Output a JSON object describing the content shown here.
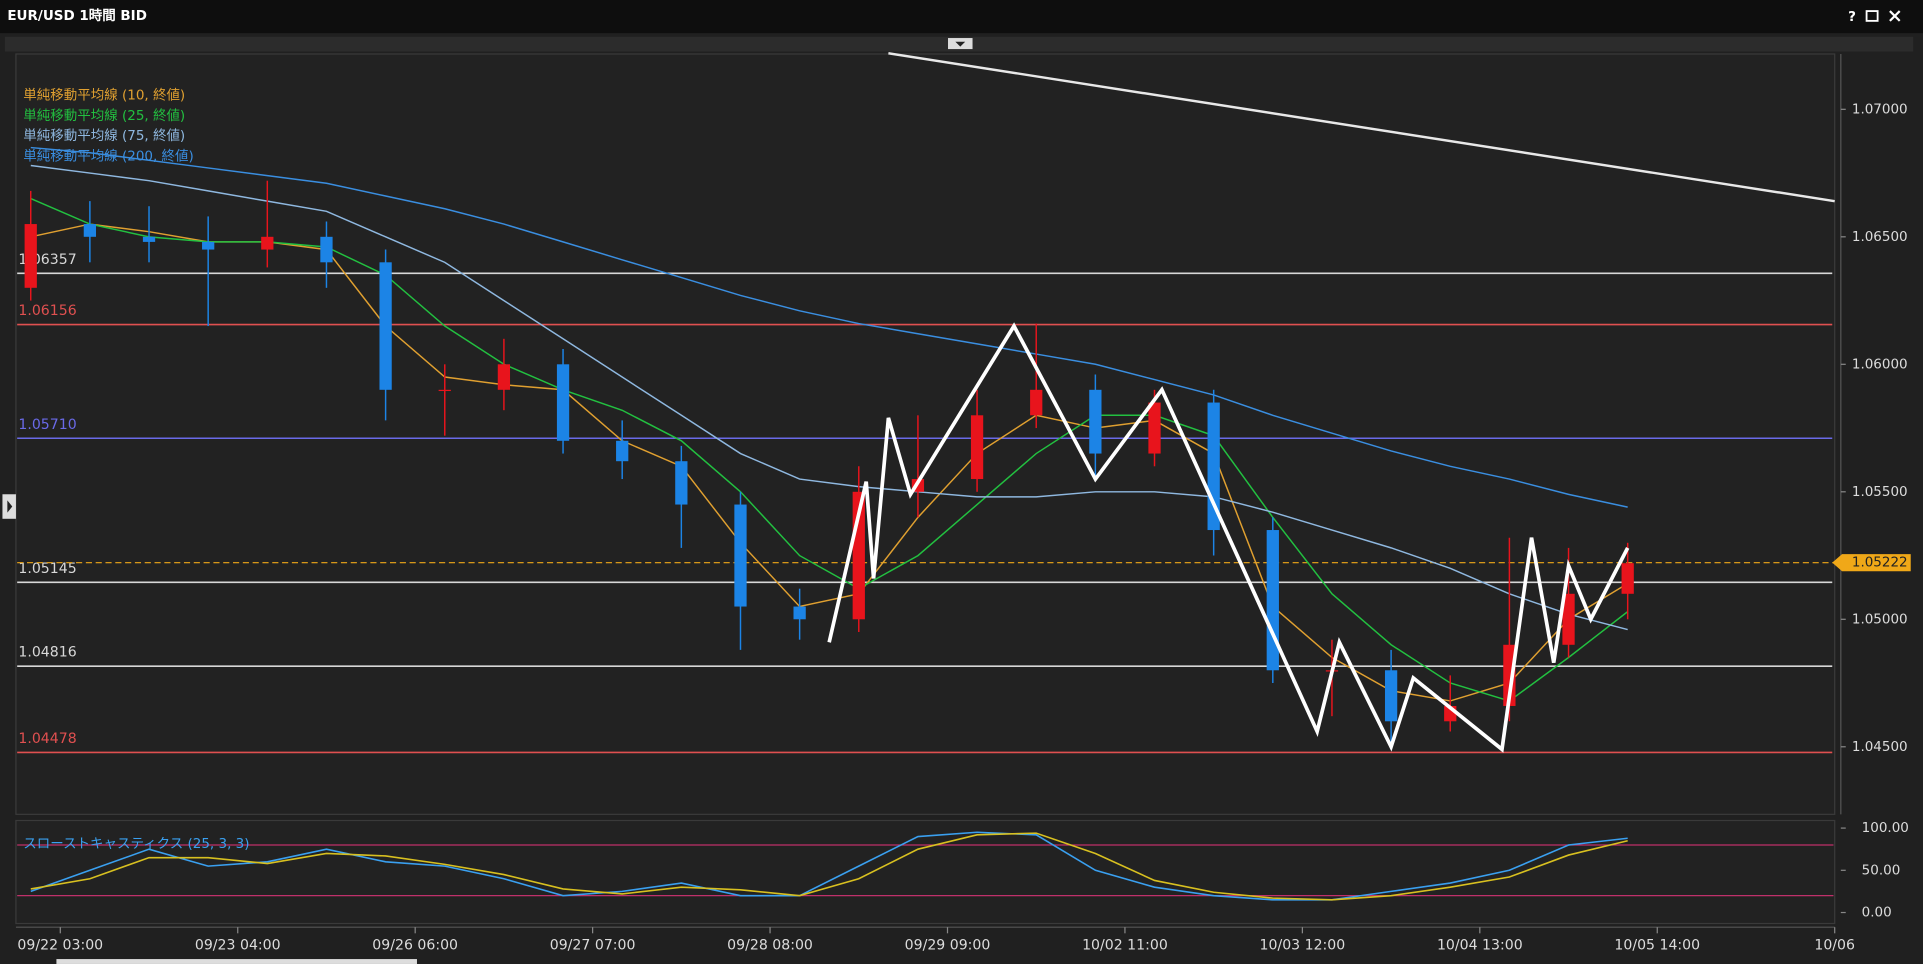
{
  "header": {
    "title": "EUR/USD 1時間 BID",
    "help": "?"
  },
  "chart_data": {
    "type": "candlestick",
    "xlim": [
      -6,
      240
    ],
    "xticks": [
      {
        "value": 0,
        "label": "09/22 03:00"
      },
      {
        "value": 24,
        "label": "09/23 04:00"
      },
      {
        "value": 48,
        "label": "09/26 06:00"
      },
      {
        "value": 72,
        "label": "09/27 07:00"
      },
      {
        "value": 96,
        "label": "09/28 08:00"
      },
      {
        "value": 120,
        "label": "09/29 09:00"
      },
      {
        "value": 144,
        "label": "10/02 11:00"
      },
      {
        "value": 168,
        "label": "10/03 12:00"
      },
      {
        "value": 192,
        "label": "10/04 13:00"
      },
      {
        "value": 216,
        "label": "10/05 14:00"
      },
      {
        "value": 240,
        "label": "10/06"
      }
    ],
    "ylim": [
      1.04235,
      1.07217
    ],
    "yticks": [
      {
        "value": 1.07,
        "label": "1.07000"
      },
      {
        "value": 1.065,
        "label": "1.06500"
      },
      {
        "value": 1.06,
        "label": "1.06000"
      },
      {
        "value": 1.055,
        "label": "1.05500"
      },
      {
        "value": 1.05,
        "label": "1.05000"
      },
      {
        "value": 1.045,
        "label": "1.04500"
      }
    ],
    "candles": {
      "up_color": "#e8141c",
      "down_color": "#1c84e6",
      "x": [
        -4,
        4,
        12,
        20,
        28,
        36,
        44,
        52,
        60,
        68,
        76,
        84,
        92,
        100,
        108,
        116,
        124,
        132,
        140,
        148,
        156,
        164,
        172,
        180,
        188,
        196,
        204,
        212
      ],
      "open": [
        1.063,
        1.0655,
        1.065,
        1.0648,
        1.0645,
        1.065,
        1.064,
        1.059,
        1.059,
        1.06,
        1.057,
        1.0562,
        1.0545,
        1.0505,
        1.05,
        1.055,
        1.0555,
        1.058,
        1.059,
        1.0565,
        1.0585,
        1.0535,
        1.048,
        1.048,
        1.046,
        1.0466,
        1.049,
        1.051
      ],
      "high": [
        1.0668,
        1.0664,
        1.0662,
        1.0658,
        1.0672,
        1.0656,
        1.0645,
        1.06,
        1.061,
        1.0606,
        1.0578,
        1.0568,
        1.055,
        1.0512,
        1.056,
        1.058,
        1.059,
        1.0616,
        1.0596,
        1.059,
        1.059,
        1.054,
        1.0492,
        1.0488,
        1.0478,
        1.0532,
        1.0528,
        1.053
      ],
      "low": [
        1.0625,
        1.064,
        1.064,
        1.0615,
        1.0638,
        1.063,
        1.0578,
        1.0572,
        1.0582,
        1.0565,
        1.0555,
        1.0528,
        1.0488,
        1.0492,
        1.0495,
        1.054,
        1.055,
        1.0575,
        1.0556,
        1.056,
        1.0525,
        1.0475,
        1.0462,
        1.0449,
        1.0456,
        1.046,
        1.0485,
        1.05
      ],
      "close": [
        1.0655,
        1.065,
        1.0648,
        1.0645,
        1.065,
        1.064,
        1.059,
        1.059,
        1.06,
        1.057,
        1.0562,
        1.0545,
        1.0505,
        1.05,
        1.055,
        1.0555,
        1.058,
        1.059,
        1.0565,
        1.0585,
        1.0535,
        1.048,
        1.048,
        1.046,
        1.0466,
        1.049,
        1.051,
        1.0522
      ]
    },
    "series_x": [
      -4,
      4,
      12,
      20,
      28,
      36,
      44,
      52,
      60,
      68,
      76,
      84,
      92,
      100,
      108,
      116,
      124,
      132,
      140,
      148,
      156,
      164,
      172,
      180,
      188,
      196,
      204,
      212
    ],
    "series": [
      {
        "name": "単純移動平均線 (10, 終値)",
        "color": "#e0a030",
        "values": [
          1.065,
          1.0655,
          1.0652,
          1.0648,
          1.0648,
          1.0645,
          1.0615,
          1.0595,
          1.0592,
          1.059,
          1.057,
          1.056,
          1.053,
          1.0505,
          1.051,
          1.054,
          1.0565,
          1.058,
          1.0575,
          1.0578,
          1.0565,
          1.0505,
          1.0485,
          1.0472,
          1.0468,
          1.0475,
          1.05,
          1.0514
        ]
      },
      {
        "name": "単純移動平均線 (25, 終値)",
        "color": "#22c040",
        "values": [
          1.0665,
          1.0655,
          1.065,
          1.0648,
          1.0648,
          1.0646,
          1.0635,
          1.0615,
          1.06,
          1.059,
          1.0582,
          1.057,
          1.055,
          1.0525,
          1.0512,
          1.0525,
          1.0545,
          1.0565,
          1.058,
          1.058,
          1.0572,
          1.054,
          1.051,
          1.049,
          1.0475,
          1.0468,
          1.0485,
          1.0503
        ]
      },
      {
        "name": "単純移動平均線 (75, 終値)",
        "color": "#8fb8e0",
        "values": [
          1.0678,
          1.0675,
          1.0672,
          1.0668,
          1.0664,
          1.066,
          1.065,
          1.064,
          1.0625,
          1.061,
          1.0595,
          1.058,
          1.0565,
          1.0555,
          1.0552,
          1.055,
          1.0548,
          1.0548,
          1.055,
          1.055,
          1.0548,
          1.0542,
          1.0535,
          1.0528,
          1.052,
          1.051,
          1.0502,
          1.0496
        ]
      },
      {
        "name": "単純移動平均線 (200, 終値)",
        "color": "#3a8ee0",
        "values": [
          1.0685,
          1.0683,
          1.068,
          1.0677,
          1.0674,
          1.0671,
          1.0666,
          1.0661,
          1.0655,
          1.0648,
          1.0641,
          1.0634,
          1.0627,
          1.0621,
          1.0616,
          1.0612,
          1.0608,
          1.0604,
          1.06,
          1.0594,
          1.0588,
          1.058,
          1.0573,
          1.0566,
          1.056,
          1.0555,
          1.0549,
          1.0544
        ]
      }
    ],
    "levels": [
      {
        "value": 1.06357,
        "color": "#d8d8d8"
      },
      {
        "value": 1.06156,
        "color": "#e05050"
      },
      {
        "value": 1.0571,
        "label": "1.05710",
        "color": "#6a6ae8"
      },
      {
        "value": 1.05145,
        "color": "#d8d8d8"
      },
      {
        "value": 1.04816,
        "color": "#d8d8d8"
      },
      {
        "value": 1.04478,
        "color": "#e05050"
      }
    ],
    "current_price": 1.05222,
    "current_color": "#f0a818",
    "zigzag": {
      "color": "#ffffff",
      "x": [
        104,
        109,
        110,
        112,
        115,
        129,
        140,
        149,
        170,
        173,
        180,
        183,
        195,
        199,
        202,
        204,
        207,
        212
      ],
      "values": [
        1.0491,
        1.0554,
        1.0516,
        1.0579,
        1.0549,
        1.0615,
        1.0555,
        1.059,
        1.0456,
        1.0491,
        1.045,
        1.0477,
        1.0449,
        1.0532,
        1.0483,
        1.0521,
        1.05,
        1.0528
      ]
    },
    "trendline": {
      "color": "#e8e8e8",
      "x": [
        112,
        240
      ],
      "values": [
        1.0722,
        1.0664
      ]
    },
    "stochastic": {
      "label": "スローストキャスティクス (25, 3, 3)",
      "ylim": [
        -13,
        109
      ],
      "yticks": [
        {
          "value": 100,
          "label": "100.00"
        },
        {
          "value": 50,
          "label": "50.00"
        },
        {
          "value": 0,
          "label": "0.00"
        }
      ],
      "levels": [
        80,
        20
      ],
      "x": [
        -4,
        4,
        12,
        20,
        28,
        36,
        44,
        52,
        60,
        68,
        76,
        84,
        92,
        100,
        108,
        116,
        124,
        132,
        140,
        148,
        156,
        164,
        172,
        180,
        188,
        196,
        204,
        212
      ],
      "series": [
        {
          "color": "#3aa0f0",
          "values": [
            25,
            50,
            75,
            55,
            60,
            75,
            60,
            55,
            40,
            20,
            25,
            35,
            20,
            20,
            55,
            90,
            95,
            92,
            50,
            30,
            20,
            15,
            15,
            25,
            35,
            50,
            80,
            88
          ]
        },
        {
          "color": "#d8c020",
          "values": [
            28,
            40,
            65,
            65,
            58,
            70,
            67,
            57,
            45,
            28,
            22,
            30,
            27,
            20,
            40,
            75,
            92,
            94,
            70,
            38,
            24,
            17,
            15,
            20,
            30,
            42,
            68,
            85
          ]
        }
      ]
    }
  }
}
